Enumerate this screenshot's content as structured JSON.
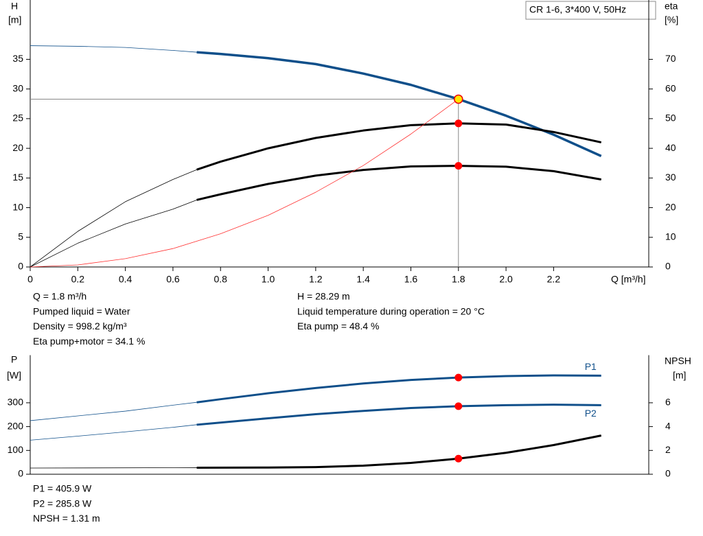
{
  "chart_data": [
    {
      "type": "line",
      "title": "CR 1-6, 3*400 V, 50Hz",
      "ylabel": [
        "H",
        "[m]"
      ],
      "y2label": [
        "eta",
        "[%]"
      ],
      "xlabel": "Q [m³/h]",
      "xlim": [
        0,
        2.6
      ],
      "xticks": [
        0,
        0.2,
        0.4,
        0.6,
        0.8,
        {
          "value": 1,
          "label": "1.0"
        },
        1.2,
        1.4,
        1.6,
        1.8,
        {
          "value": 2,
          "label": "2.0"
        },
        2.2
      ],
      "ylim": [
        0,
        45
      ],
      "yticks": [
        0,
        5,
        10,
        15,
        20,
        25,
        30,
        35
      ],
      "y2lim": [
        0,
        90
      ],
      "y2ticks": [
        0,
        10,
        20,
        30,
        40,
        50,
        60,
        70
      ],
      "operating_range": [
        0.7,
        2.4
      ],
      "operating_point": 1.8,
      "series": [
        {
          "color": "#0f4f8a",
          "marker_color": "#ffe600",
          "x": [
            0,
            0.2,
            0.4,
            0.6,
            0.7,
            0.8,
            1.0,
            1.2,
            1.4,
            1.6,
            1.8,
            2.0,
            2.2,
            2.4
          ],
          "values": [
            37.3,
            37.2,
            37.0,
            36.5,
            36.2,
            35.9,
            35.2,
            34.2,
            32.6,
            30.7,
            28.29,
            25.5,
            22.3,
            18.7
          ]
        },
        {
          "color": "#000000",
          "marker_color": "#ff0000",
          "axis": "y2",
          "x": [
            0,
            0.2,
            0.4,
            0.6,
            0.7,
            0.8,
            1.0,
            1.2,
            1.4,
            1.6,
            1.8,
            2.0,
            2.2,
            2.4
          ],
          "values": [
            0,
            12,
            22,
            29.5,
            32.8,
            35.5,
            40,
            43.5,
            46,
            47.8,
            48.4,
            48,
            45.5,
            42
          ]
        },
        {
          "color": "#000000",
          "marker_color": "#ff0000",
          "axis": "y2",
          "x": [
            0,
            0.2,
            0.4,
            0.6,
            0.7,
            0.8,
            1.0,
            1.2,
            1.4,
            1.6,
            1.8,
            2.0,
            2.2,
            2.4
          ],
          "values": [
            0,
            8,
            14.5,
            19.5,
            22.6,
            24.5,
            28,
            30.8,
            32.7,
            33.9,
            34.1,
            33.8,
            32.3,
            29.5
          ]
        },
        {
          "color": "#ff3030",
          "thin": true,
          "x": [
            0,
            0.2,
            0.4,
            0.6,
            0.8,
            1.0,
            1.2,
            1.4,
            1.6,
            1.8
          ],
          "values": [
            0,
            0.35,
            1.4,
            3.1,
            5.6,
            8.7,
            12.6,
            17.1,
            22.4,
            28.29
          ]
        }
      ],
      "notes": [
        [
          "Q = 1.8 m³/h",
          "Pumped liquid = Water",
          "Density = 998.2 kg/m³",
          "Eta pump+motor = 34.1 %"
        ],
        [
          "H = 28.29 m",
          "Liquid temperature during operation = 20 °C",
          "Eta pump = 48.4 %"
        ]
      ]
    },
    {
      "type": "line",
      "ylabel": [
        "P",
        "[W]"
      ],
      "y2label": [
        "NPSH",
        "[m]"
      ],
      "xlim": [
        0,
        2.6
      ],
      "ylim": [
        0,
        500
      ],
      "yticks": [
        0,
        100,
        200,
        300
      ],
      "y2lim": [
        0,
        10
      ],
      "y2ticks": [
        0,
        2,
        4,
        6
      ],
      "operating_range": [
        0.7,
        2.4
      ],
      "operating_point": 1.8,
      "series": [
        {
          "name": "P1",
          "color": "#0f4f8a",
          "marker_color": "#ff0000",
          "x": [
            0,
            0.2,
            0.4,
            0.6,
            0.7,
            0.8,
            1.0,
            1.2,
            1.4,
            1.6,
            1.8,
            2.0,
            2.2,
            2.4
          ],
          "values": [
            225,
            245,
            265,
            290,
            302,
            315,
            340,
            362,
            381,
            396,
            405.9,
            412,
            415,
            414
          ]
        },
        {
          "name": "P2",
          "color": "#0f4f8a",
          "marker_color": "#ff0000",
          "x": [
            0,
            0.2,
            0.4,
            0.6,
            0.7,
            0.8,
            1.0,
            1.2,
            1.4,
            1.6,
            1.8,
            2.0,
            2.2,
            2.4
          ],
          "values": [
            143,
            160,
            178,
            197,
            208,
            217,
            235,
            252,
            266,
            278,
            285.8,
            290,
            292,
            290
          ]
        },
        {
          "color": "#000000",
          "marker_color": "#ff0000",
          "axis": "y2",
          "x": [
            0,
            0.7,
            1.0,
            1.2,
            1.4,
            1.6,
            1.8,
            2.0,
            2.2,
            2.4
          ],
          "values": [
            0.52,
            0.55,
            0.56,
            0.6,
            0.72,
            0.95,
            1.31,
            1.8,
            2.45,
            3.25
          ]
        }
      ],
      "notes": [
        [
          "P1 = 405.9 W",
          "P2 = 285.8 W",
          "NPSH = 1.31 m"
        ]
      ]
    }
  ]
}
